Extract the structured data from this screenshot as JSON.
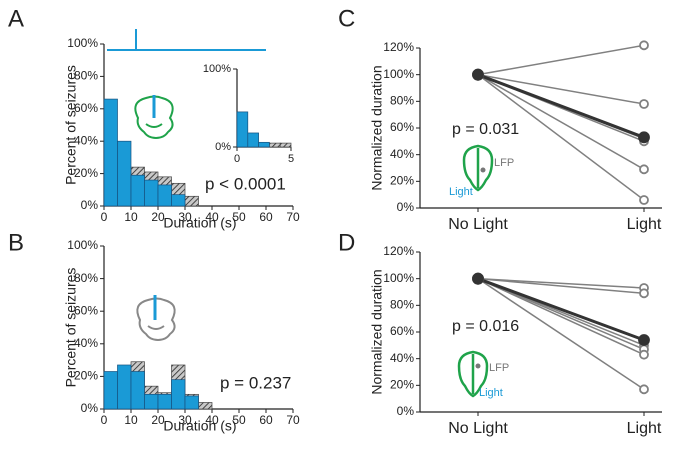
{
  "chart_data": [
    {
      "type": "histogram",
      "panel": "A",
      "ylabel": "Percent of seizures",
      "xlabel": "Duration (s)",
      "xlim": [
        0,
        70
      ],
      "xticks": [
        0,
        10,
        20,
        30,
        40,
        50,
        60,
        70
      ],
      "ylim": [
        0,
        100
      ],
      "yticks": [
        {
          "value": 0,
          "label": "0%"
        },
        {
          "value": 20,
          "label": "20%"
        },
        {
          "value": 40,
          "label": "40%"
        },
        {
          "value": 60,
          "label": "60%"
        },
        {
          "value": 80,
          "label": "80%"
        },
        {
          "value": 100,
          "label": "100%"
        }
      ],
      "bins": [
        0,
        5,
        10,
        15,
        20,
        25,
        30,
        35
      ],
      "series": [
        {
          "color": "#444444",
          "pattern": "hatched",
          "values": [
            null,
            null,
            24,
            21,
            18,
            14,
            6
          ]
        },
        {
          "color": "#1a9ad6",
          "values": [
            66,
            40,
            19,
            16,
            13,
            7,
            null
          ]
        }
      ],
      "annotations": [
        "p < 0.0001"
      ]
    },
    {
      "type": "histogram",
      "xlim": [
        0,
        5
      ],
      "xticks": [
        0,
        5
      ],
      "ylim": [
        0,
        100
      ],
      "yticks": [
        {
          "value": 0,
          "label": "0%"
        },
        {
          "value": 100,
          "label": "100%"
        }
      ],
      "bins": [
        0,
        1,
        2,
        3,
        4,
        5
      ],
      "series": [
        {
          "color": "#444444",
          "pattern": "hatched",
          "values": [
            null,
            null,
            5,
            5,
            5
          ]
        },
        {
          "color": "#1a9ad6",
          "values": [
            45,
            18,
            6,
            null,
            null
          ]
        }
      ]
    },
    {
      "type": "histogram",
      "panel": "B",
      "ylabel": "Percent of seizures",
      "xlabel": "Duration (s)",
      "xlim": [
        0,
        70
      ],
      "xticks": [
        0,
        10,
        20,
        30,
        40,
        50,
        60,
        70
      ],
      "ylim": [
        0,
        100
      ],
      "yticks": [
        {
          "value": 0,
          "label": "0%"
        },
        {
          "value": 20,
          "label": "20%"
        },
        {
          "value": 40,
          "label": "40%"
        },
        {
          "value": 60,
          "label": "60%"
        },
        {
          "value": 80,
          "label": "80%"
        },
        {
          "value": 100,
          "label": "100%"
        }
      ],
      "bins": [
        0,
        5,
        10,
        15,
        20,
        25,
        30,
        35,
        40
      ],
      "series": [
        {
          "color": "#444444",
          "pattern": "hatched",
          "values": [
            20,
            21,
            29,
            14,
            10,
            27,
            9,
            4
          ]
        },
        {
          "color": "#1a9ad6",
          "values": [
            23,
            27,
            23,
            9,
            9,
            18,
            8,
            null
          ]
        }
      ],
      "annotations": [
        "p = 0.237"
      ]
    },
    {
      "type": "line",
      "panel": "C",
      "ylabel": "Normalized duration",
      "categories": [
        "No Light",
        "Light"
      ],
      "ylim": [
        0,
        120
      ],
      "yticks": [
        {
          "value": 0,
          "label": "0%"
        },
        {
          "value": 20,
          "label": "20%"
        },
        {
          "value": 40,
          "label": "40%"
        },
        {
          "value": 60,
          "label": "60%"
        },
        {
          "value": 80,
          "label": "80%"
        },
        {
          "value": 100,
          "label": "100%"
        },
        {
          "value": 120,
          "label": "120%"
        }
      ],
      "series": [
        {
          "color": "#808080",
          "values": [
            100,
            122
          ]
        },
        {
          "color": "#808080",
          "values": [
            100,
            78
          ]
        },
        {
          "color": "#808080",
          "values": [
            100,
            52
          ]
        },
        {
          "color": "#808080",
          "values": [
            100,
            50
          ]
        },
        {
          "color": "#808080",
          "values": [
            100,
            29
          ]
        },
        {
          "color": "#808080",
          "values": [
            100,
            6
          ]
        },
        {
          "color": "#333333",
          "values": [
            100,
            53
          ]
        }
      ],
      "annotations": [
        "p = 0.031",
        "LFP",
        "Light"
      ]
    },
    {
      "type": "line",
      "panel": "D",
      "ylabel": "Normalized duration",
      "categories": [
        "No Light",
        "Light"
      ],
      "ylim": [
        0,
        120
      ],
      "yticks": [
        {
          "value": 0,
          "label": "0%"
        },
        {
          "value": 20,
          "label": "20%"
        },
        {
          "value": 40,
          "label": "40%"
        },
        {
          "value": 60,
          "label": "60%"
        },
        {
          "value": 80,
          "label": "80%"
        },
        {
          "value": 100,
          "label": "100%"
        },
        {
          "value": 120,
          "label": "120%"
        }
      ],
      "series": [
        {
          "color": "#808080",
          "values": [
            100,
            93
          ]
        },
        {
          "color": "#808080",
          "values": [
            100,
            89
          ]
        },
        {
          "color": "#808080",
          "values": [
            100,
            50
          ]
        },
        {
          "color": "#808080",
          "values": [
            100,
            47
          ]
        },
        {
          "color": "#808080",
          "values": [
            100,
            43
          ]
        },
        {
          "color": "#808080",
          "values": [
            100,
            17
          ]
        },
        {
          "color": "#333333",
          "values": [
            100,
            54
          ]
        }
      ],
      "annotations": [
        "p = 0.016",
        "LFP",
        "Light"
      ]
    }
  ]
}
